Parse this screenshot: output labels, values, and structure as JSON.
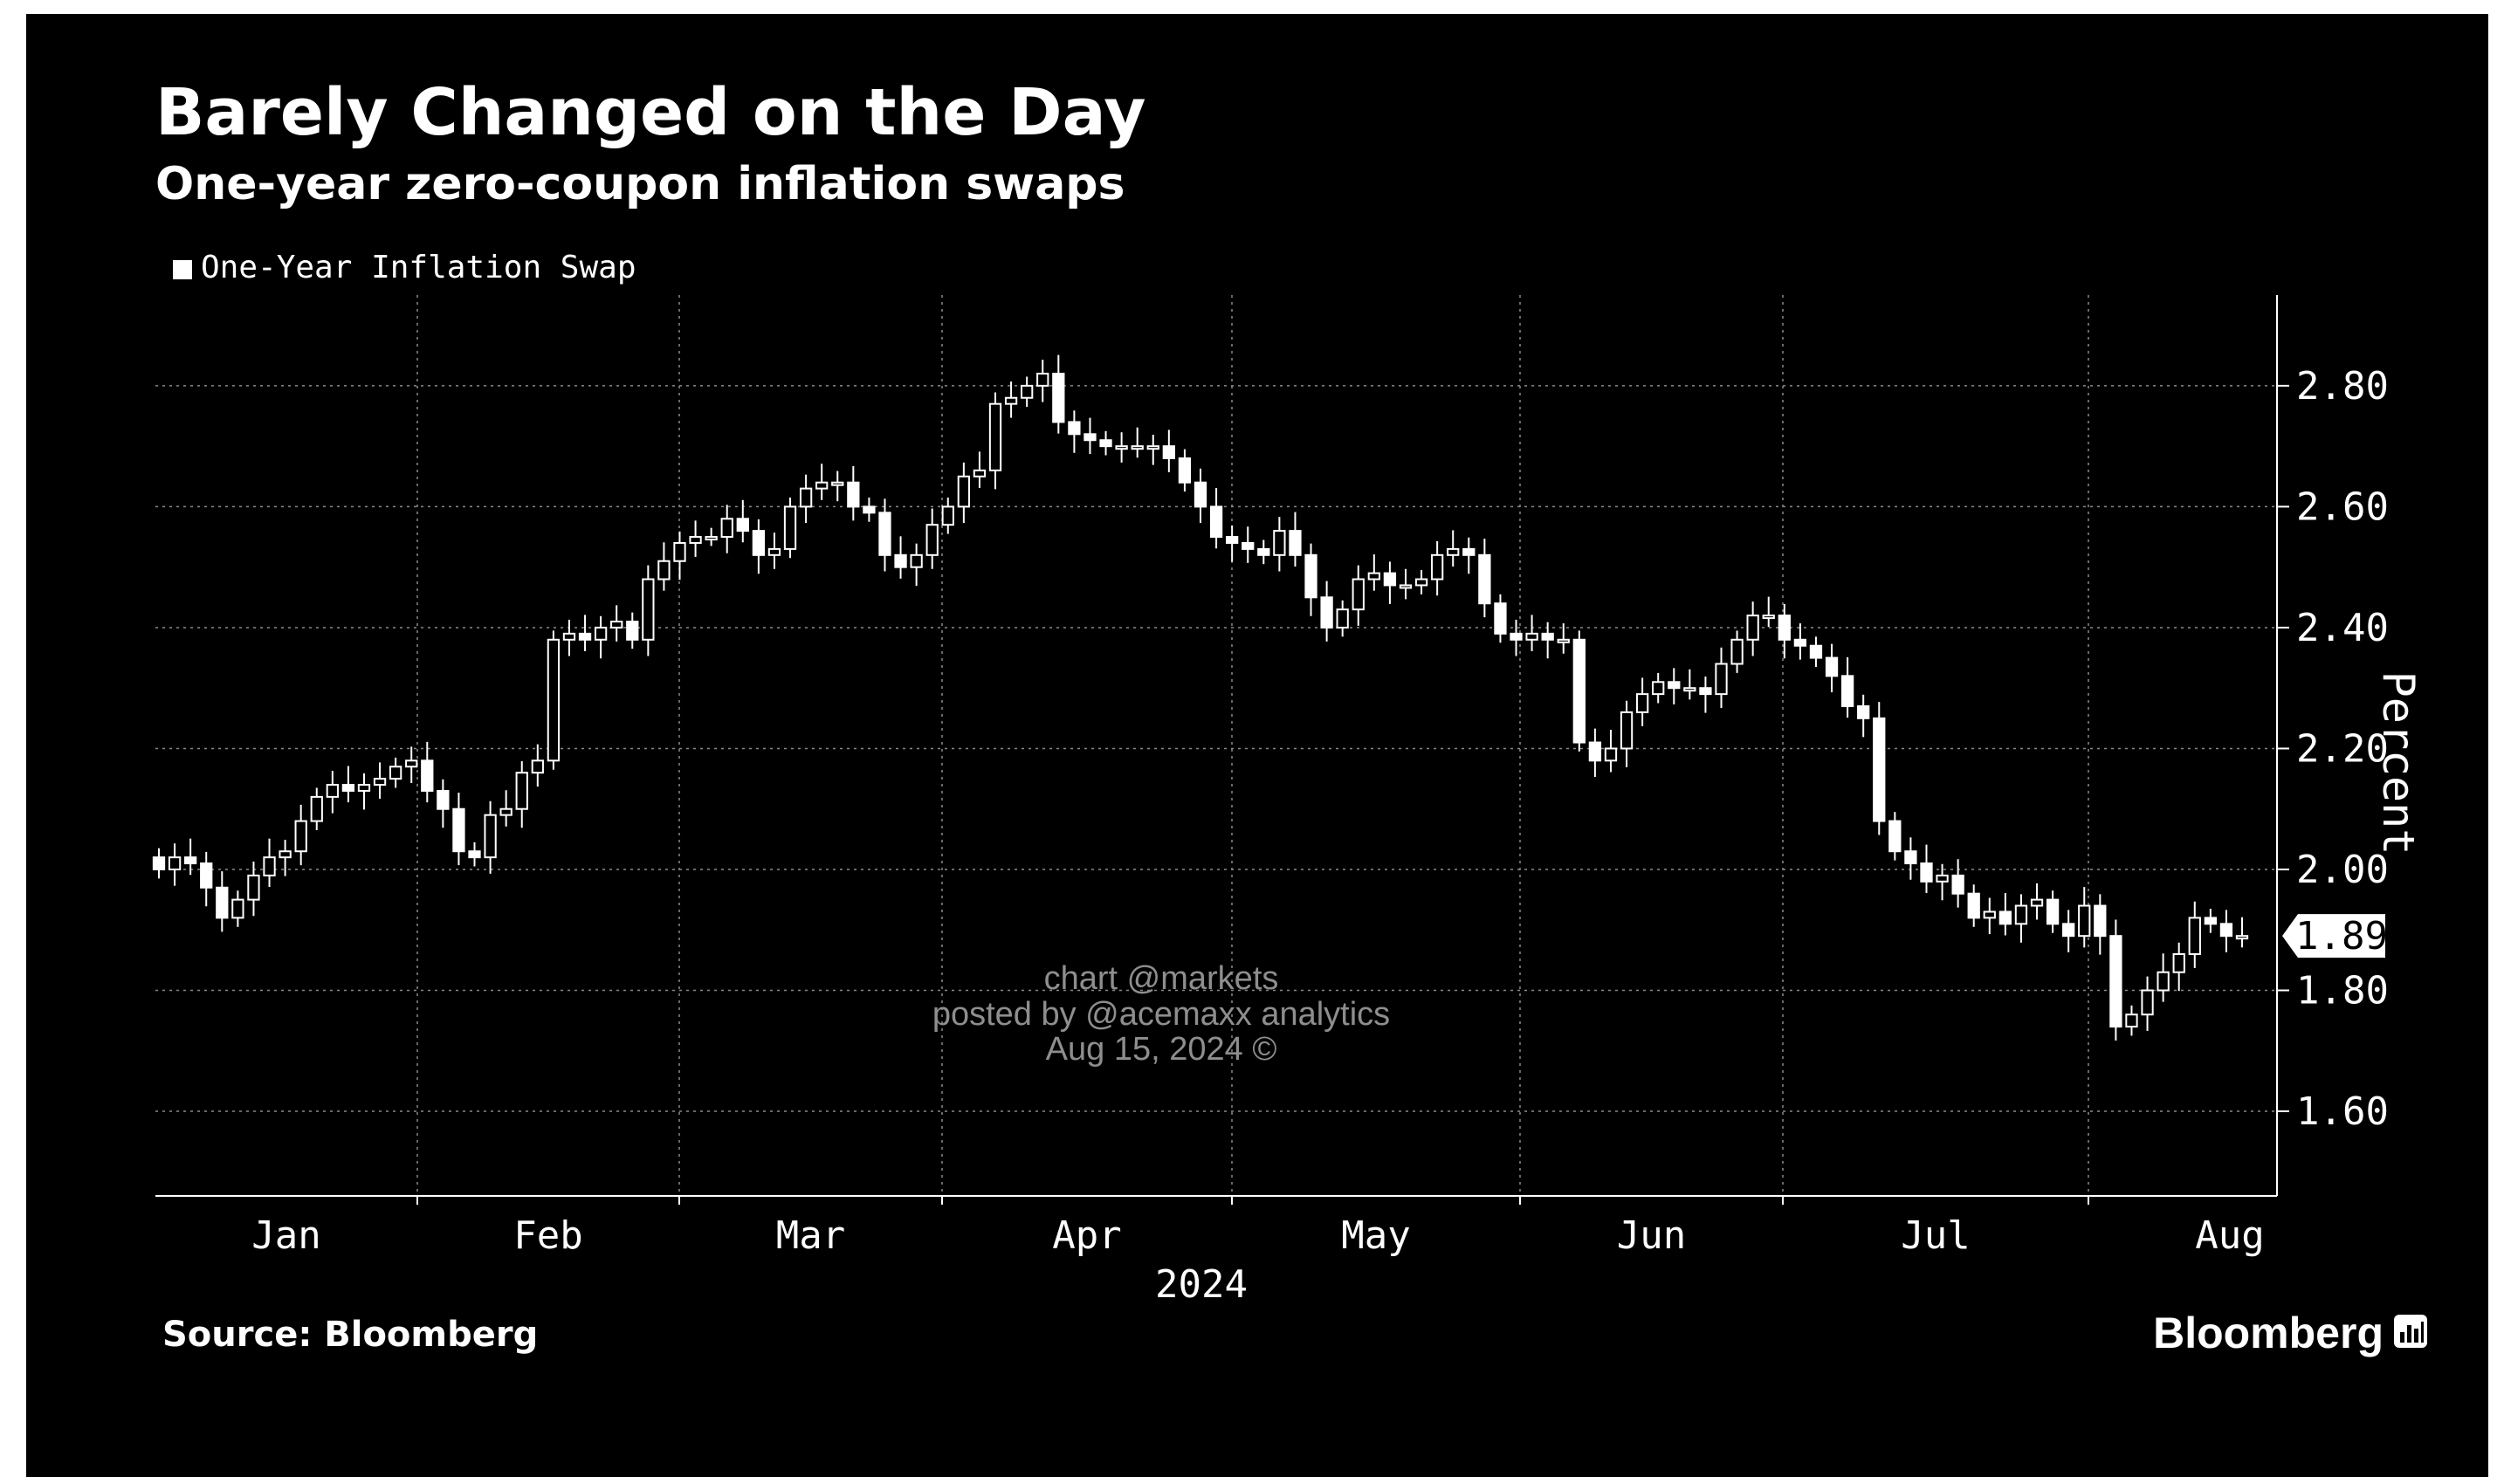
{
  "chart_data": {
    "type": "candlestick",
    "title": "Barely Changed on the Day",
    "subtitle": "One-year zero-coupon inflation swaps",
    "ylabel": "Percent",
    "xlabel": "2024",
    "ylim": [
      1.46,
      2.95
    ],
    "yticks": [
      "2.80",
      "2.60",
      "2.40",
      "2.20",
      "2.00",
      "1.80",
      "1.60"
    ],
    "month_labels": [
      "Jan",
      "Feb",
      "Mar",
      "Apr",
      "May",
      "Jun",
      "Jul",
      "Aug"
    ],
    "grid": true,
    "legend_position": "top-left",
    "series": [
      {
        "name": "One-Year Inflation Swap",
        "color": "#ffffff",
        "close": [
          2.0,
          2.02,
          2.01,
          1.97,
          1.92,
          1.95,
          1.99,
          2.02,
          2.03,
          2.08,
          2.12,
          2.14,
          2.13,
          2.14,
          2.15,
          2.17,
          2.18,
          2.13,
          2.1,
          2.03,
          2.02,
          2.09,
          2.1,
          2.16,
          2.18,
          2.38,
          2.39,
          2.38,
          2.4,
          2.41,
          2.38,
          2.48,
          2.51,
          2.54,
          2.55,
          2.55,
          2.58,
          2.56,
          2.52,
          2.53,
          2.6,
          2.63,
          2.64,
          2.64,
          2.6,
          2.59,
          2.52,
          2.5,
          2.52,
          2.57,
          2.6,
          2.65,
          2.66,
          2.77,
          2.78,
          2.8,
          2.82,
          2.74,
          2.72,
          2.71,
          2.7,
          2.7,
          2.7,
          2.7,
          2.68,
          2.64,
          2.6,
          2.55,
          2.54,
          2.53,
          2.52,
          2.56,
          2.52,
          2.45,
          2.4,
          2.43,
          2.48,
          2.49,
          2.47,
          2.47,
          2.48,
          2.52,
          2.53,
          2.52,
          2.44,
          2.39,
          2.38,
          2.39,
          2.38,
          2.38,
          2.21,
          2.18,
          2.2,
          2.26,
          2.29,
          2.31,
          2.3,
          2.3,
          2.29,
          2.34,
          2.38,
          2.42,
          2.42,
          2.38,
          2.37,
          2.35,
          2.32,
          2.27,
          2.25,
          2.08,
          2.03,
          2.01,
          1.98,
          1.99,
          1.96,
          1.92,
          1.93,
          1.91,
          1.94,
          1.95,
          1.91,
          1.89,
          1.94,
          1.89,
          1.74,
          1.76,
          1.8,
          1.83,
          1.86,
          1.92,
          1.91,
          1.89,
          1.89
        ]
      }
    ],
    "last_value": "1.89",
    "annotations": [
      "chart @markets",
      "posted by @acemaxx analytics",
      "Aug 15, 2024 ©"
    ],
    "source": "Source: Bloomberg",
    "brand": "Bloomberg"
  },
  "colors": {
    "background": "#000000",
    "foreground": "#ffffff",
    "grid": "#8a8a8a",
    "watermark": "#8e8e8e"
  },
  "icons": {
    "brand_mark": "bloomberg-chart-logo-icon"
  }
}
